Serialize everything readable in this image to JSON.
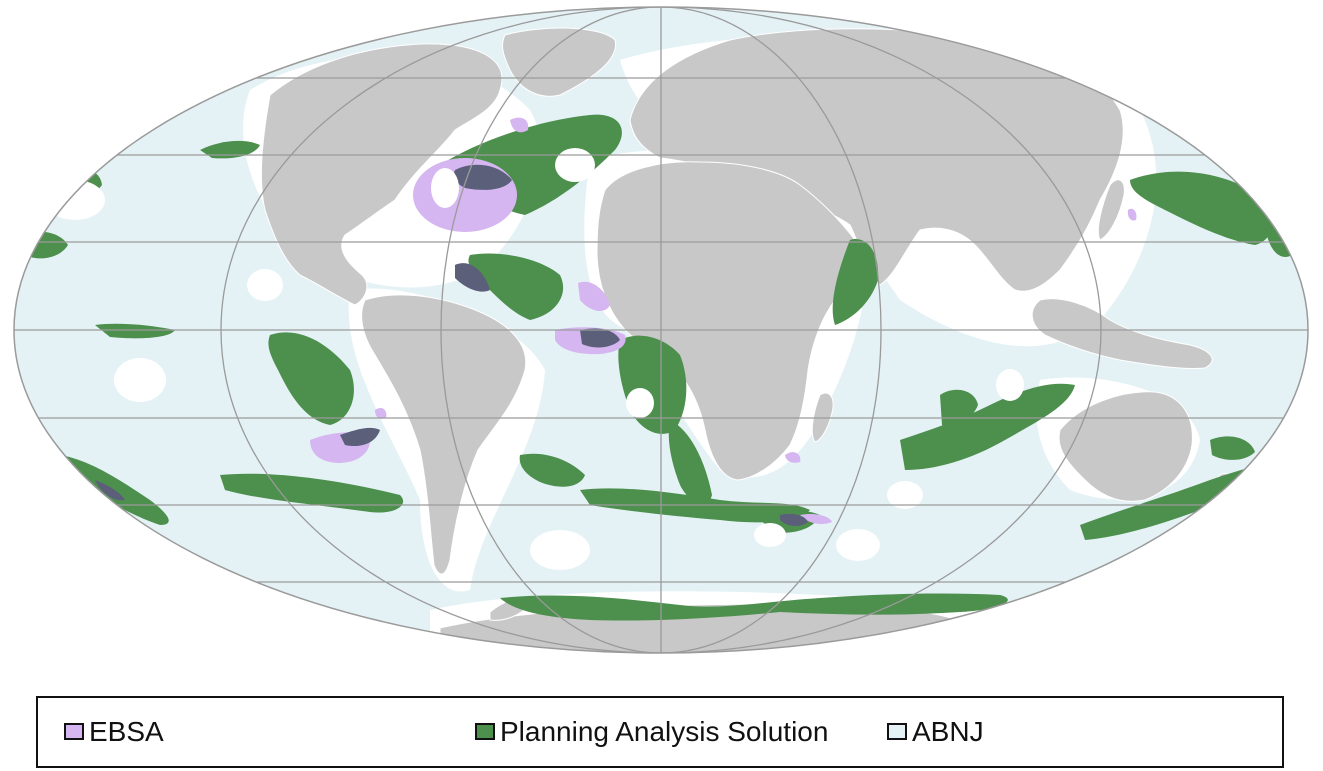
{
  "map": {
    "projection": "mollweide",
    "colors": {
      "ocean_abnj": "#e4f2f6",
      "land": "#c8c8c8",
      "ebsa": "#d5b6f0",
      "planning": "#4d8f4d",
      "overlap": "#5b5f7a",
      "graticule": "#9a9a9a",
      "coastline": "#ffffff"
    }
  },
  "legend": {
    "items": [
      {
        "label": "EBSA",
        "color": "#d5b6f0"
      },
      {
        "label": "Planning Analysis Solution",
        "color": "#4d8f4d"
      },
      {
        "label": "ABNJ",
        "color": "#e4f2f6"
      }
    ]
  }
}
